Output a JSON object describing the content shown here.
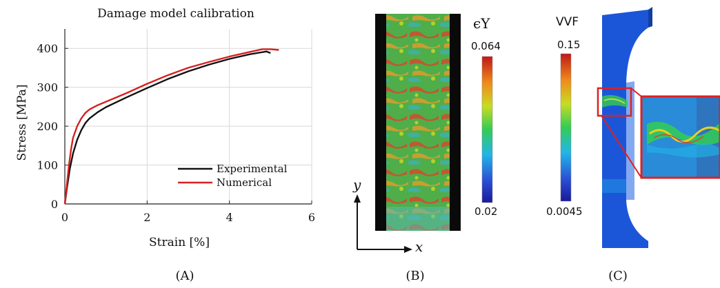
{
  "chart_data": {
    "type": "line",
    "title": "Damage model calibration",
    "xlabel": "Strain [%]",
    "ylabel": "Stress [MPa]",
    "xlim": [
      0,
      6
    ],
    "ylim": [
      0,
      450
    ],
    "xticks": [
      0,
      2,
      4,
      6
    ],
    "yticks": [
      0,
      100,
      200,
      300,
      400
    ],
    "grid": true,
    "legend_position": "bottom-right",
    "series": [
      {
        "name": "Experimental",
        "color": "#111111",
        "points": [
          [
            0,
            0
          ],
          [
            0.05,
            40
          ],
          [
            0.12,
            90
          ],
          [
            0.2,
            130
          ],
          [
            0.3,
            165
          ],
          [
            0.4,
            190
          ],
          [
            0.5,
            208
          ],
          [
            0.6,
            220
          ],
          [
            0.8,
            236
          ],
          [
            1.0,
            249
          ],
          [
            1.5,
            274
          ],
          [
            2.0,
            298
          ],
          [
            2.5,
            321
          ],
          [
            3.0,
            341
          ],
          [
            3.5,
            358
          ],
          [
            4.0,
            373
          ],
          [
            4.5,
            385
          ],
          [
            4.9,
            392
          ],
          [
            5.0,
            388
          ]
        ]
      },
      {
        "name": "Numerical",
        "color": "#d62020",
        "points": [
          [
            0,
            0
          ],
          [
            0.05,
            50
          ],
          [
            0.1,
            100
          ],
          [
            0.15,
            140
          ],
          [
            0.2,
            170
          ],
          [
            0.3,
            200
          ],
          [
            0.4,
            220
          ],
          [
            0.5,
            234
          ],
          [
            0.6,
            243
          ],
          [
            0.8,
            254
          ],
          [
            1.0,
            263
          ],
          [
            1.5,
            285
          ],
          [
            2.0,
            309
          ],
          [
            2.5,
            331
          ],
          [
            3.0,
            350
          ],
          [
            3.5,
            365
          ],
          [
            4.0,
            379
          ],
          [
            4.5,
            391
          ],
          [
            4.8,
            398
          ],
          [
            5.0,
            398
          ],
          [
            5.2,
            396
          ]
        ]
      }
    ]
  },
  "panels": {
    "a_label": "(A)",
    "b_label": "(B)",
    "c_label": "(C)"
  },
  "panel_b": {
    "axis_y": "y",
    "axis_x": "x",
    "colorbar": {
      "title": "ϵY",
      "max_label": "0.064",
      "min_label": "0.02"
    }
  },
  "panel_c": {
    "colorbar": {
      "title": "VVF",
      "max_label": "0.15",
      "min_label": "0.0045"
    }
  },
  "colors": {
    "jet_top": "#c01818",
    "jet_mid": "#33cc55",
    "jet_bottom": "#1a1a9a",
    "specimen_blue": "#1c56d8",
    "zoom_box": "#e02020"
  }
}
